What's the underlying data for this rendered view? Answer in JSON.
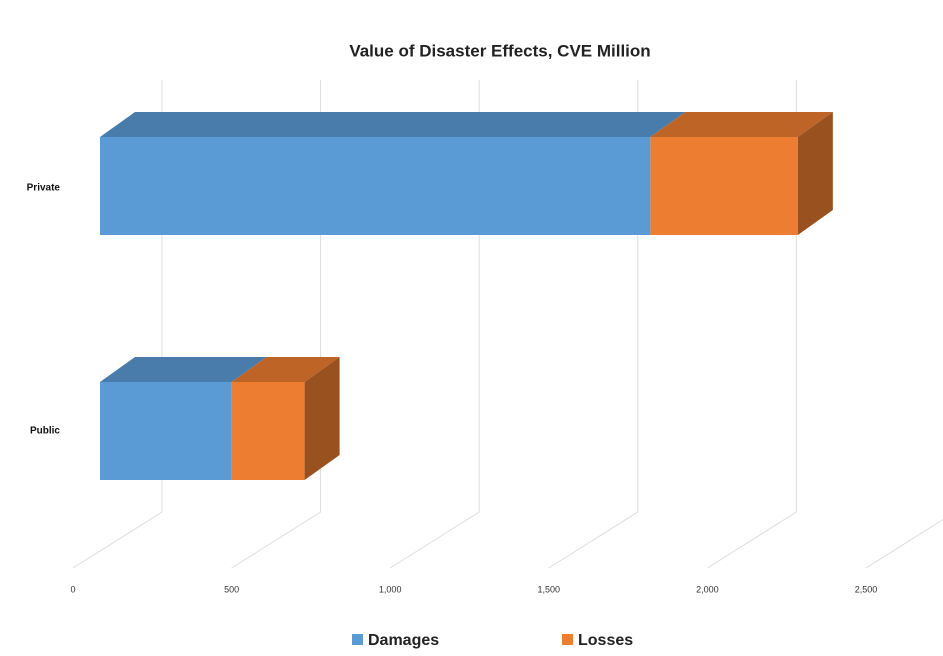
{
  "chart_data": {
    "type": "bar3d_stacked_horizontal",
    "title": "Value of Disaster Effects, CVE  Million",
    "categories": [
      "Private",
      "Public"
    ],
    "series": [
      {
        "name": "Damages",
        "color": "#5b9bd5",
        "values": [
          1735,
          415
        ]
      },
      {
        "name": "Losses",
        "color": "#ed7d31",
        "values": [
          465,
          230
        ]
      }
    ],
    "xlim": [
      0,
      2500
    ],
    "xticks": [
      0,
      500,
      {
        "value": 1000,
        "label": "1,000"
      },
      {
        "value": 1500,
        "label": "1,500"
      },
      {
        "value": 2000,
        "label": "2,000"
      },
      {
        "value": 2500,
        "label": "2,500"
      }
    ],
    "grid": true,
    "legend": "bottom"
  }
}
